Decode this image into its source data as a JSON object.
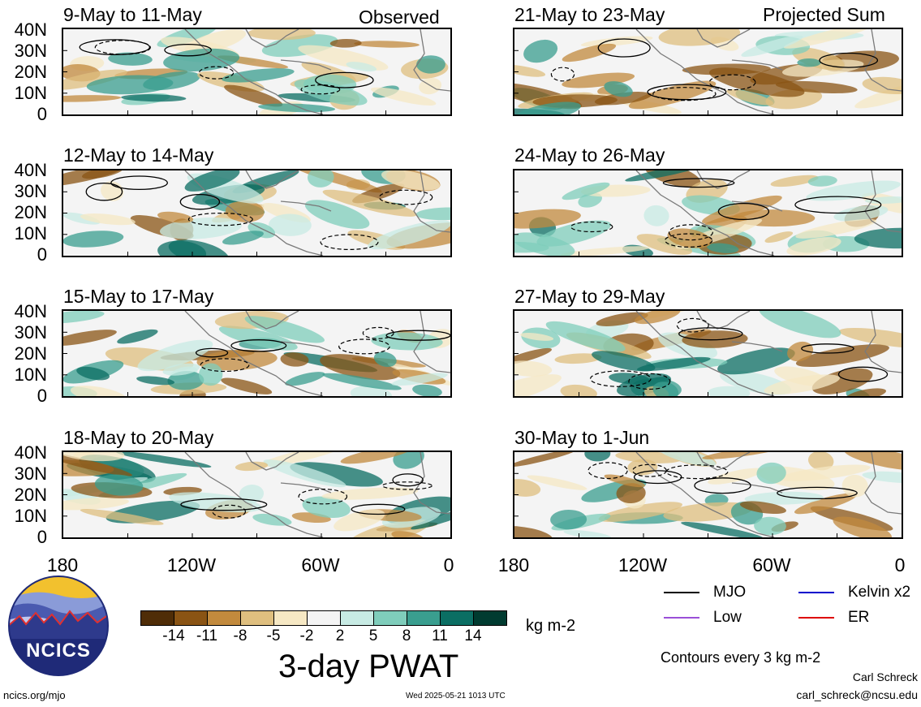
{
  "observed_label": "Observed",
  "projected_label": "Projected Sum",
  "panels_left": [
    {
      "title": "9-May to 11-May"
    },
    {
      "title": "12-May to 14-May"
    },
    {
      "title": "15-May to 17-May"
    },
    {
      "title": "18-May to 20-May"
    }
  ],
  "panels_right": [
    {
      "title": "21-May to 23-May"
    },
    {
      "title": "24-May to 26-May"
    },
    {
      "title": "27-May to 29-May"
    },
    {
      "title": "30-May to 1-Jun"
    }
  ],
  "lat_ticks": [
    "40N",
    "30N",
    "20N",
    "10N",
    "0"
  ],
  "lon_ticks": [
    "180",
    "120W",
    "60W",
    "0"
  ],
  "colorbar": {
    "labels": [
      "-14",
      "-11",
      "-8",
      "-5",
      "-2",
      "2",
      "5",
      "8",
      "11",
      "14"
    ],
    "colors": [
      "#4f2d07",
      "#8a5414",
      "#c28a3d",
      "#dfbf7f",
      "#f6e8c4",
      "#f4f4f4",
      "#c8ebe4",
      "#7fcdbb",
      "#3a9e8f",
      "#0b6e63",
      "#003b30"
    ],
    "units": "kg m-2",
    "title": "3-day PWAT"
  },
  "legend": [
    {
      "label": "MJO",
      "color": "#000000"
    },
    {
      "label": "Kelvin x2",
      "color": "#0000cc"
    },
    {
      "label": "Low",
      "color": "#9a4fd8"
    },
    {
      "label": "ER",
      "color": "#dd0000"
    }
  ],
  "contour_note": "Contours every 3 kg m-2",
  "logo_text": "NCICS",
  "footer": {
    "left": "ncics.org/mjo",
    "center": "Wed 2025-05-21 1013 UTC",
    "author": "Carl Schreck",
    "email": "carl_schreck@ncsu.edu"
  }
}
